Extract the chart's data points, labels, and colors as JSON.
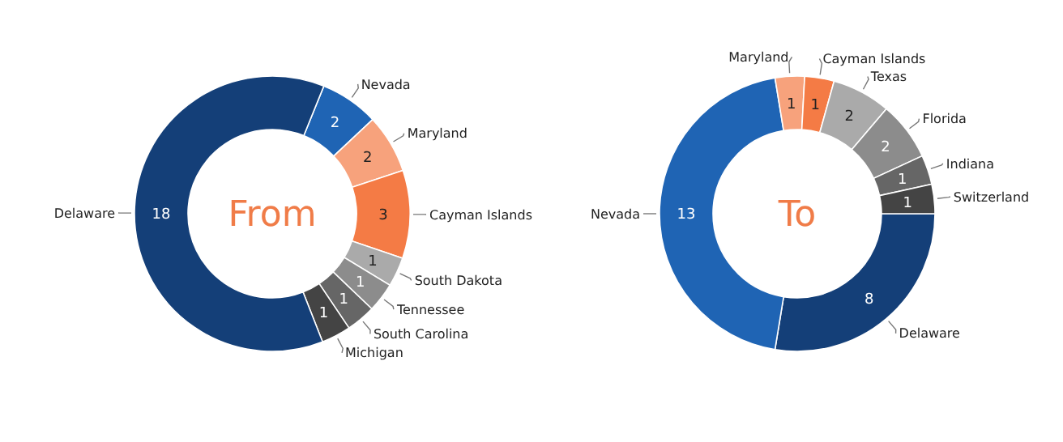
{
  "chart_data": [
    {
      "type": "donut",
      "title": "From",
      "categories": [
        "Nevada",
        "Maryland",
        "Cayman Islands",
        "South Dakota",
        "Tennessee",
        "South Carolina",
        "Michigan",
        "Delaware"
      ],
      "values": [
        2,
        2,
        3,
        1,
        1,
        1,
        1,
        18
      ],
      "colors": [
        "#1f64b4",
        "#f7a27c",
        "#f47b45",
        "#aaaaaa",
        "#8c8c8c",
        "#666666",
        "#444444",
        "#143f78"
      ],
      "data_labels": true
    },
    {
      "type": "donut",
      "title": "To",
      "categories": [
        "Delaware",
        "Nevada",
        "Maryland",
        "Cayman Islands",
        "Texas",
        "Florida",
        "Indiana",
        "Switzerland"
      ],
      "values": [
        8,
        13,
        1,
        1,
        2,
        2,
        1,
        1
      ],
      "colors": [
        "#143f78",
        "#1f64b4",
        "#f7a27c",
        "#f47b45",
        "#aaaaaa",
        "#8c8c8c",
        "#666666",
        "#444444"
      ],
      "data_labels": true
    }
  ]
}
